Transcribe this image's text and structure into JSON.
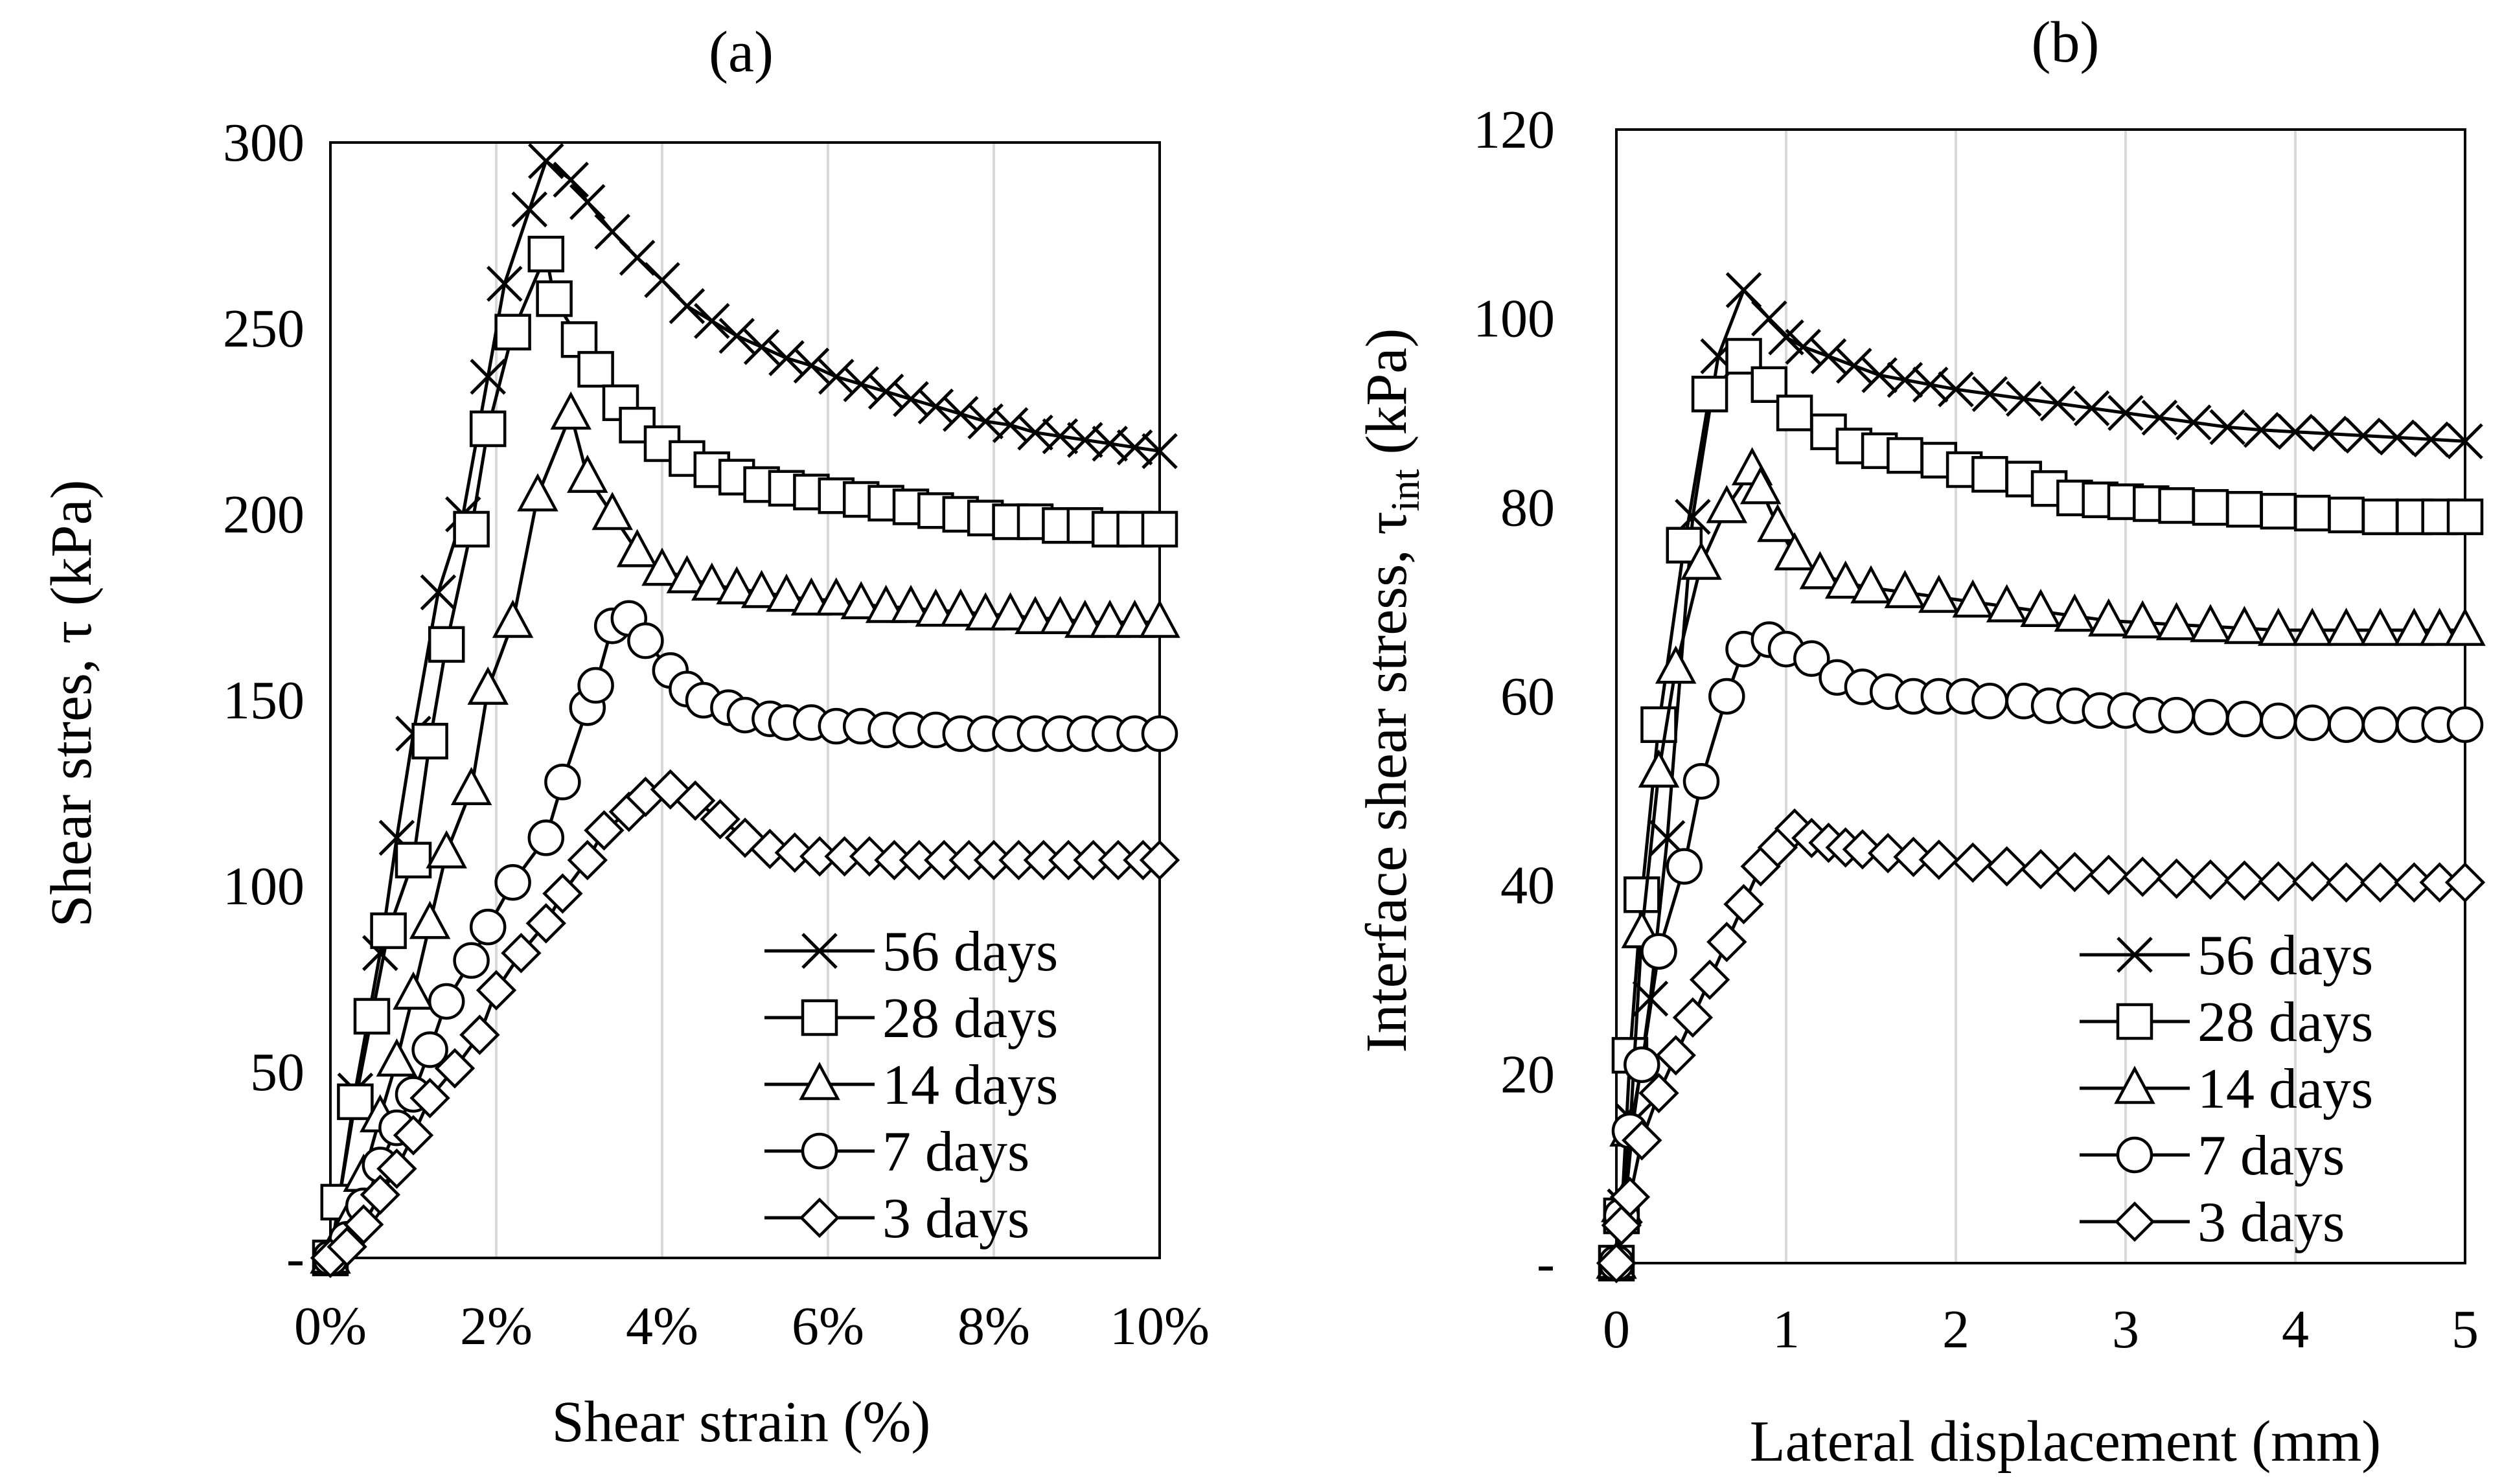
{
  "figure": {
    "background": "#ffffff",
    "line_color": "#000000",
    "grid_color": "#d9d9d9"
  },
  "chart_data": [
    {
      "type": "line",
      "panel_label": "(a)",
      "xlabel": "Shear strain (%)",
      "ylabel_main": "Shear stres, τ (kPa)",
      "xlim": [
        0,
        10
      ],
      "ylim": [
        0,
        300
      ],
      "xticks": [
        0,
        2,
        4,
        6,
        8,
        10
      ],
      "xtick_labels": [
        "0%",
        "2%",
        "4%",
        "6%",
        "8%",
        "10%"
      ],
      "yticks": [
        0,
        50,
        100,
        150,
        200,
        250,
        300
      ],
      "ytick_labels": [
        "-",
        "50",
        "100",
        "150",
        "200",
        "250",
        "300"
      ],
      "grid": "vertical",
      "legend_position": "bottom-right",
      "series": [
        {
          "name": "56 days",
          "marker": "x",
          "x": [
            0,
            0.3,
            0.6,
            0.8,
            1.0,
            1.3,
            1.6,
            1.9,
            2.1,
            2.4,
            2.6,
            2.9,
            3.1,
            3.4,
            3.7,
            4.0,
            4.3,
            4.6,
            4.9,
            5.2,
            5.5,
            5.8,
            6.1,
            6.4,
            6.7,
            7.0,
            7.3,
            7.6,
            7.9,
            8.2,
            8.5,
            8.8,
            9.1,
            9.4,
            9.7,
            10.0
          ],
          "y": [
            0,
            45,
            82,
            113,
            141,
            179,
            200,
            237,
            262,
            282,
            295,
            290,
            284,
            276,
            269,
            263,
            256,
            252,
            248,
            245,
            242,
            240,
            237,
            235,
            233,
            231,
            229,
            227,
            225,
            224,
            222,
            221,
            220,
            219,
            218,
            217
          ]
        },
        {
          "name": "28 days",
          "marker": "square",
          "x": [
            0,
            0.1,
            0.3,
            0.5,
            0.7,
            1.0,
            1.2,
            1.4,
            1.7,
            1.9,
            2.2,
            2.6,
            2.7,
            3.0,
            3.2,
            3.5,
            3.7,
            4.0,
            4.3,
            4.6,
            4.9,
            5.2,
            5.5,
            5.8,
            6.1,
            6.4,
            6.7,
            7.0,
            7.3,
            7.6,
            7.9,
            8.2,
            8.5,
            8.8,
            9.1,
            9.4,
            9.7,
            10.0
          ],
          "y": [
            0,
            15,
            42,
            65,
            88,
            107,
            139,
            165,
            196,
            223,
            249,
            270,
            258,
            247,
            239,
            230,
            224,
            219,
            215,
            212,
            210,
            208,
            207,
            206,
            205,
            204,
            203,
            202,
            201,
            200,
            199,
            198,
            198,
            197,
            197,
            196,
            196,
            196
          ]
        },
        {
          "name": "14 days",
          "marker": "triangle",
          "x": [
            0,
            0.2,
            0.4,
            0.6,
            0.8,
            1.0,
            1.2,
            1.4,
            1.7,
            1.9,
            2.2,
            2.5,
            2.9,
            3.1,
            3.4,
            3.7,
            4.0,
            4.3,
            4.6,
            4.9,
            5.2,
            5.5,
            5.8,
            6.1,
            6.4,
            6.7,
            7.0,
            7.3,
            7.6,
            7.9,
            8.2,
            8.5,
            8.8,
            9.1,
            9.4,
            9.7,
            10.0
          ],
          "y": [
            0,
            9,
            22,
            38,
            53,
            71,
            90,
            109,
            126,
            153,
            171,
            205,
            227,
            210,
            200,
            190,
            185,
            183,
            181,
            180,
            179,
            178,
            177,
            177,
            176,
            175,
            175,
            174,
            174,
            173,
            173,
            172,
            172,
            171,
            171,
            171,
            171
          ]
        },
        {
          "name": "7 days",
          "marker": "circle",
          "x": [
            0,
            0.2,
            0.4,
            0.6,
            0.8,
            1.0,
            1.2,
            1.4,
            1.7,
            1.9,
            2.2,
            2.6,
            2.8,
            3.1,
            3.2,
            3.4,
            3.6,
            3.8,
            4.1,
            4.3,
            4.5,
            4.8,
            5.0,
            5.3,
            5.5,
            5.8,
            6.1,
            6.4,
            6.7,
            7.0,
            7.3,
            7.6,
            7.9,
            8.2,
            8.5,
            8.8,
            9.1,
            9.4,
            9.7,
            10.0
          ],
          "y": [
            0,
            5,
            14,
            25,
            35,
            44,
            56,
            69,
            80,
            89,
            101,
            113,
            128,
            148,
            154,
            170,
            172,
            166,
            158,
            153,
            150,
            148,
            146,
            145,
            144,
            144,
            143,
            143,
            142,
            142,
            142,
            141,
            141,
            141,
            141,
            141,
            141,
            141,
            141,
            141
          ]
        },
        {
          "name": "3 days",
          "marker": "diamond",
          "x": [
            0,
            0.2,
            0.4,
            0.6,
            0.8,
            1.0,
            1.2,
            1.5,
            1.8,
            2.0,
            2.3,
            2.6,
            2.8,
            3.1,
            3.3,
            3.6,
            3.8,
            4.1,
            4.4,
            4.7,
            5.0,
            5.3,
            5.6,
            5.9,
            6.2,
            6.5,
            6.8,
            7.1,
            7.4,
            7.7,
            8.0,
            8.3,
            8.6,
            8.9,
            9.2,
            9.5,
            9.8,
            10.0
          ],
          "y": [
            0,
            3,
            9,
            17,
            24,
            33,
            43,
            51,
            60,
            72,
            82,
            90,
            98,
            107,
            115,
            120,
            124,
            126,
            123,
            118,
            113,
            110,
            109,
            108,
            108,
            108,
            107,
            107,
            107,
            107,
            107,
            107,
            107,
            107,
            107,
            107,
            107,
            107
          ]
        }
      ]
    },
    {
      "type": "line",
      "panel_label": "(b)",
      "xlabel": "Lateral displacement (mm)",
      "ylabel_main": "Interface shear stress, τ",
      "ylabel_sub": "int",
      "ylabel_unit": " (kPa)",
      "xlim": [
        0,
        5
      ],
      "ylim": [
        0,
        120
      ],
      "xticks": [
        0,
        1,
        2,
        3,
        4,
        5
      ],
      "xtick_labels": [
        "0",
        "1",
        "2",
        "3",
        "4",
        "5"
      ],
      "yticks": [
        0,
        20,
        40,
        60,
        80,
        100,
        120
      ],
      "ytick_labels": [
        "-",
        "20",
        "40",
        "60",
        "80",
        "100",
        "120"
      ],
      "grid": "vertical",
      "legend_position": "bottom-right",
      "series": [
        {
          "name": "56 days",
          "marker": "x",
          "x": [
            0,
            0.05,
            0.1,
            0.2,
            0.3,
            0.45,
            0.6,
            0.75,
            0.9,
            1.0,
            1.1,
            1.25,
            1.4,
            1.55,
            1.7,
            1.85,
            2.0,
            2.2,
            2.4,
            2.6,
            2.8,
            3.0,
            3.2,
            3.4,
            3.6,
            3.8,
            4.0,
            4.2,
            4.4,
            4.6,
            4.8,
            5.0
          ],
          "y": [
            0,
            6,
            15,
            28,
            45,
            79,
            96,
            103,
            100,
            98,
            97,
            96,
            95,
            94,
            93.5,
            93,
            92.5,
            92,
            91.5,
            91,
            90.5,
            90,
            89.5,
            89,
            88.5,
            88.2,
            88,
            87.8,
            87.6,
            87.4,
            87.2,
            87
          ]
        },
        {
          "name": "28 days",
          "marker": "square",
          "x": [
            0,
            0.03,
            0.08,
            0.15,
            0.25,
            0.4,
            0.55,
            0.75,
            0.9,
            1.05,
            1.25,
            1.4,
            1.55,
            1.7,
            1.9,
            2.05,
            2.2,
            2.4,
            2.55,
            2.7,
            2.85,
            3.0,
            3.15,
            3.3,
            3.5,
            3.7,
            3.9,
            4.1,
            4.3,
            4.5,
            4.7,
            4.85,
            5.0
          ],
          "y": [
            0,
            5,
            22,
            39,
            57,
            76,
            92,
            96,
            93,
            90,
            88,
            86.5,
            86,
            85.5,
            85,
            84,
            83.5,
            83,
            82,
            81,
            80.8,
            80.6,
            80.4,
            80.2,
            80,
            79.8,
            79.6,
            79.4,
            79.2,
            79,
            79,
            79,
            79
          ]
        },
        {
          "name": "14 days",
          "marker": "triangle",
          "x": [
            0,
            0.03,
            0.08,
            0.15,
            0.25,
            0.35,
            0.5,
            0.65,
            0.8,
            0.85,
            0.95,
            1.05,
            1.2,
            1.35,
            1.5,
            1.7,
            1.9,
            2.1,
            2.3,
            2.5,
            2.7,
            2.9,
            3.1,
            3.3,
            3.5,
            3.7,
            3.9,
            4.1,
            4.3,
            4.5,
            4.7,
            4.85,
            5.0
          ],
          "y": [
            0,
            6,
            14,
            35,
            52,
            63,
            74,
            80,
            84,
            82,
            78,
            75,
            73,
            72,
            71.5,
            71,
            70.5,
            70,
            69.5,
            69,
            68.5,
            68,
            67.8,
            67.6,
            67.4,
            67.2,
            67,
            67,
            67,
            67,
            67,
            67,
            67
          ]
        },
        {
          "name": "7 days",
          "marker": "circle",
          "x": [
            0,
            0.03,
            0.08,
            0.15,
            0.25,
            0.4,
            0.5,
            0.65,
            0.75,
            0.9,
            1.0,
            1.15,
            1.3,
            1.45,
            1.6,
            1.75,
            1.9,
            2.05,
            2.2,
            2.4,
            2.55,
            2.7,
            2.85,
            3.0,
            3.15,
            3.3,
            3.5,
            3.7,
            3.9,
            4.1,
            4.3,
            4.5,
            4.7,
            4.85,
            5.0
          ],
          "y": [
            0,
            5,
            14,
            21,
            33,
            42,
            51,
            60,
            65,
            66,
            65,
            64,
            62,
            61,
            60.5,
            60,
            60,
            60,
            59.5,
            59.5,
            59,
            59,
            58.5,
            58.5,
            58,
            58,
            57.8,
            57.6,
            57.4,
            57.2,
            57,
            57,
            57,
            57,
            57
          ]
        },
        {
          "name": "3 days",
          "marker": "diamond",
          "x": [
            0,
            0.03,
            0.08,
            0.15,
            0.25,
            0.35,
            0.45,
            0.55,
            0.65,
            0.75,
            0.85,
            0.95,
            1.05,
            1.15,
            1.25,
            1.35,
            1.45,
            1.6,
            1.75,
            1.9,
            2.1,
            2.3,
            2.5,
            2.7,
            2.9,
            3.1,
            3.3,
            3.5,
            3.7,
            3.9,
            4.1,
            4.3,
            4.5,
            4.7,
            4.85,
            5.0
          ],
          "y": [
            0,
            4,
            7,
            13,
            18,
            22,
            26,
            30,
            34,
            38,
            42,
            44,
            46,
            45,
            44.5,
            44,
            43.8,
            43.4,
            43,
            42.7,
            42.4,
            42,
            41.7,
            41.4,
            41.1,
            40.9,
            40.7,
            40.6,
            40.5,
            40.4,
            40.4,
            40.3,
            40.3,
            40.3,
            40.3,
            40.3
          ]
        }
      ]
    }
  ]
}
